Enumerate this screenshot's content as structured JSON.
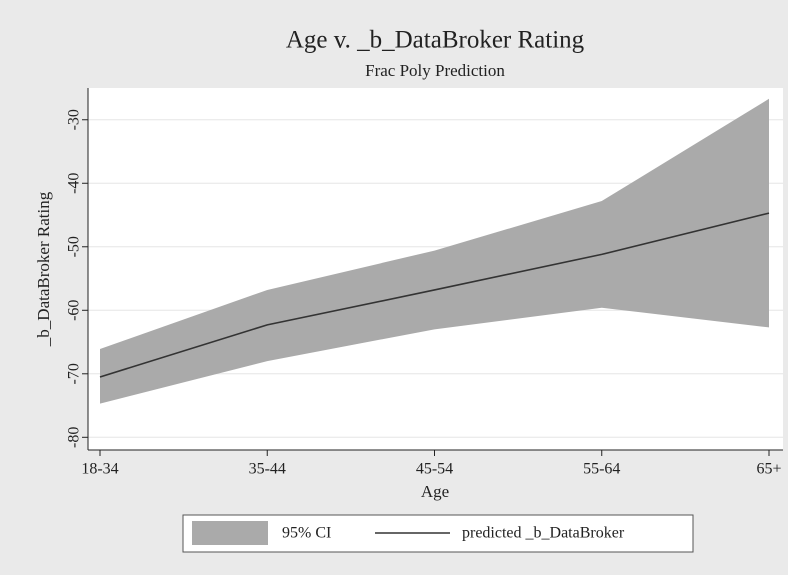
{
  "chart_data": {
    "type": "line",
    "title": "Age v. _b_DataBroker Rating",
    "subtitle": "Frac Poly Prediction",
    "x_label": "Age",
    "y_label": "_b_DataBroker Rating",
    "categories": [
      "18-34",
      "35-44",
      "45-54",
      "55-64",
      "65+"
    ],
    "series": [
      {
        "name": "95% CI",
        "color": "#aaaaaa",
        "lower": [
          -74.7,
          -68.0,
          -63.0,
          -59.6,
          -62.7
        ],
        "upper": [
          -66.1,
          -56.8,
          -50.6,
          -42.8,
          -26.7
        ]
      },
      {
        "name": "predicted _b_DataBroker",
        "color": "#333333",
        "values": [
          -70.5,
          -62.3,
          -56.8,
          -51.2,
          -44.7
        ]
      }
    ],
    "ylim": [
      -82,
      -25
    ],
    "yticks": [
      -80,
      -70,
      -60,
      -50,
      -40,
      -30
    ],
    "grid": true
  }
}
